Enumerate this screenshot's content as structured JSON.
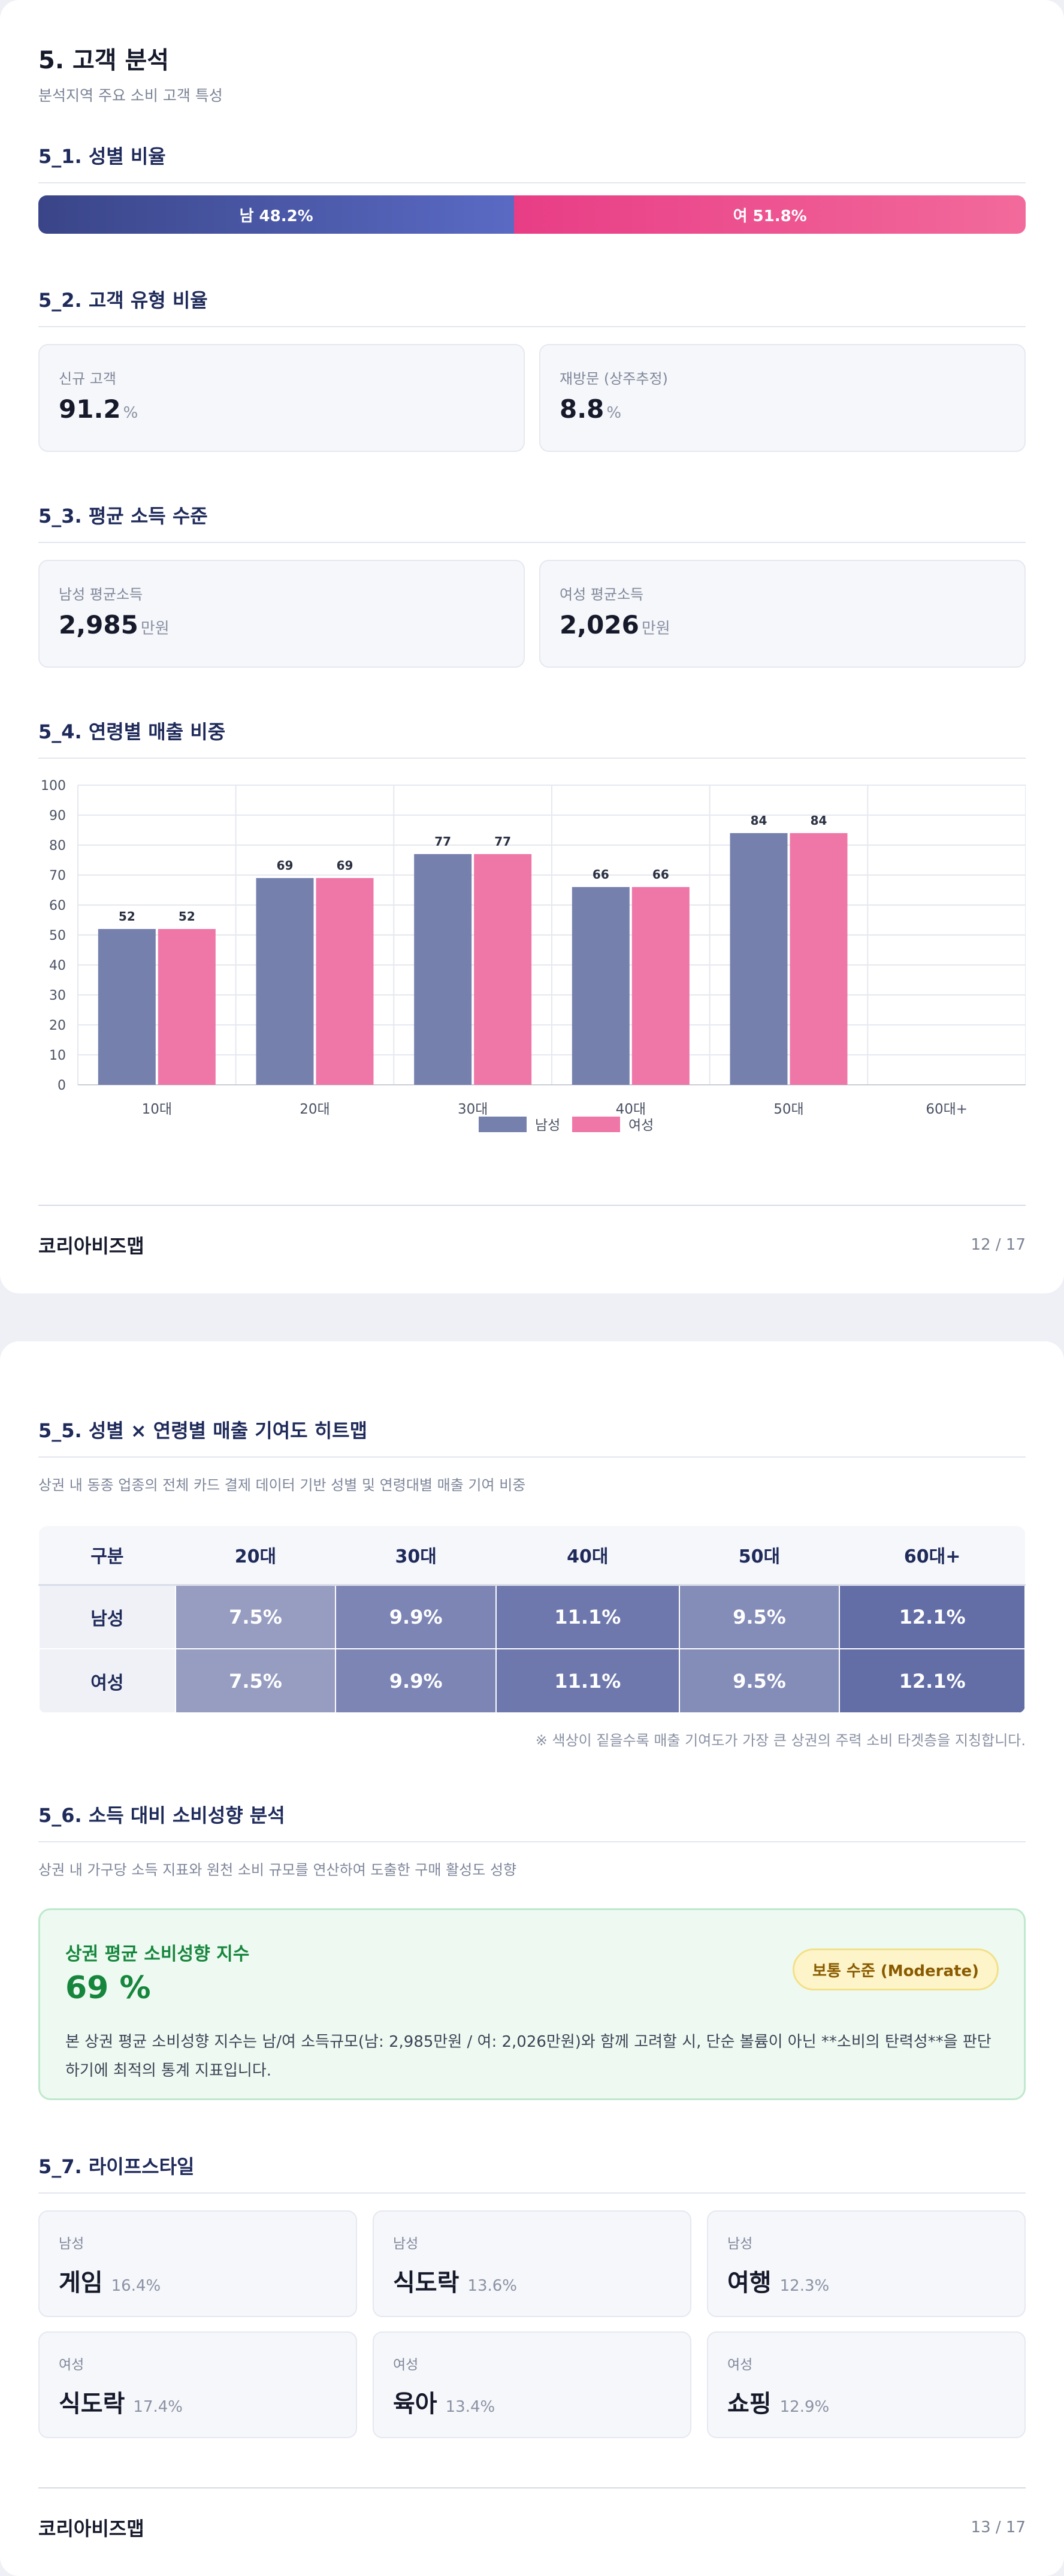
{
  "page1": {
    "title": "5. 고객 분석",
    "subtitle": "분석지역 주요 소비 고객 특성",
    "gender": {
      "heading": "5_1. 성별 비율",
      "male_label": "남 48.2%",
      "female_label": "여 51.8%",
      "male_ratio": 48.2,
      "female_ratio": 51.8
    },
    "customer_type": {
      "heading": "5_2. 고객 유형 비율",
      "cards": [
        {
          "label": "신규 고객",
          "value": "91.2",
          "unit": "%"
        },
        {
          "label": "재방문 (상주추정)",
          "value": "8.8",
          "unit": "%"
        }
      ]
    },
    "income": {
      "heading": "5_3. 평균 소득 수준",
      "cards": [
        {
          "label": "남성 평균소득",
          "value": "2,985",
          "unit": "만원"
        },
        {
          "label": "여성 평균소득",
          "value": "2,026",
          "unit": "만원"
        }
      ]
    },
    "age_sales": {
      "heading": "5_4. 연령별 매출 비중"
    },
    "footer": {
      "brand": "코리아비즈맵",
      "page": "12 / 17"
    }
  },
  "chart_data": {
    "type": "bar",
    "categories": [
      "10대",
      "20대",
      "30대",
      "40대",
      "50대",
      "60대+"
    ],
    "series": [
      {
        "name": "남성",
        "values": [
          52,
          69,
          77,
          66,
          84,
          null
        ],
        "color": "#7680ad"
      },
      {
        "name": "여성",
        "values": [
          52,
          69,
          77,
          66,
          84,
          null
        ],
        "color": "#ee77a8"
      }
    ],
    "yticks": [
      "0",
      "10",
      "20",
      "30",
      "40",
      "50",
      "60",
      "70",
      "80",
      "90",
      "100"
    ],
    "ylim": [
      0,
      100
    ],
    "grid": true,
    "legend": "bottom-center",
    "data_labels": true
  },
  "page2": {
    "heatmap": {
      "heading": "5_5. 성별 × 연령별 매출 기여도 히트맵",
      "desc": "상권 내 동종 업종의 전체 카드 결제 데이터 기반 성별 및 연령대별 매출 기여 비중",
      "columns": [
        "구분",
        "20대",
        "30대",
        "40대",
        "50대",
        "60대+"
      ],
      "rows": [
        {
          "label": "남성",
          "cells": [
            "7.5%",
            "9.9%",
            "11.1%",
            "9.5%",
            "12.1%"
          ]
        },
        {
          "label": "여성",
          "cells": [
            "7.5%",
            "9.9%",
            "11.1%",
            "9.5%",
            "12.1%"
          ]
        }
      ],
      "cell_colors": [
        "#979dc1",
        "#7d85b5",
        "#6e78ac",
        "#848cb8",
        "#636ea6"
      ],
      "note": "※ 색상이 짙을수록 매출 기여도가 가장 큰 상권의 주력 소비 타겟층을 지칭합니다."
    },
    "propensity": {
      "heading": "5_6. 소득 대비 소비성향 분석",
      "desc": "상권 내 가구당 소득 지표와 원천 소비 규모를 연산하여 도출한 구매 활성도 성향",
      "box_title": "상권 평균 소비성향 지수",
      "box_value": "69 %",
      "badge": "보통 수준 (Moderate)",
      "box_desc": "본 상권 평균 소비성향 지수는 남/여 소득규모(남: 2,985만원 / 여: 2,026만원)와 함께 고려할 시, 단순 볼륨이 아닌 **소비의 탄력성**을 판단하기에 최적의 통계 지표입니다."
    },
    "lifestyle": {
      "heading": "5_7. 라이프스타일",
      "cards": [
        {
          "gender": "남성",
          "category": "게임",
          "pct": "16.4%"
        },
        {
          "gender": "남성",
          "category": "식도락",
          "pct": "13.6%"
        },
        {
          "gender": "남성",
          "category": "여행",
          "pct": "12.3%"
        },
        {
          "gender": "여성",
          "category": "식도락",
          "pct": "17.4%"
        },
        {
          "gender": "여성",
          "category": "육아",
          "pct": "13.4%"
        },
        {
          "gender": "여성",
          "category": "쇼핑",
          "pct": "12.9%"
        }
      ]
    },
    "footer": {
      "brand": "코리아비즈맵",
      "page": "13 / 17"
    }
  }
}
